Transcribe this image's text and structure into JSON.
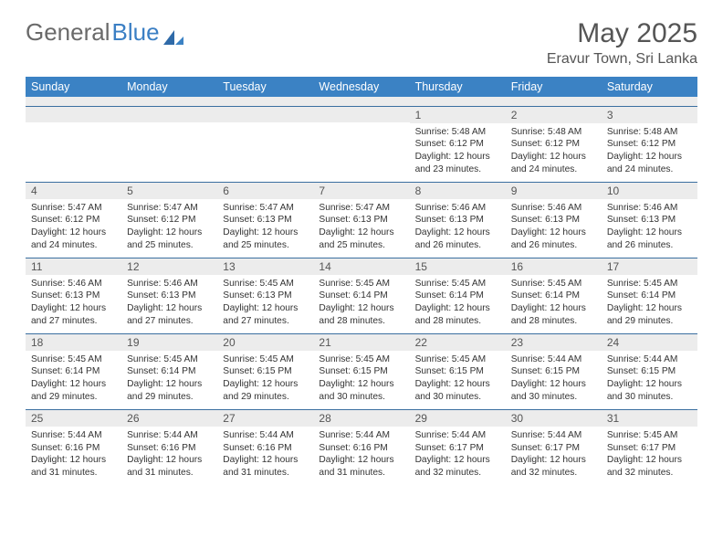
{
  "logo": {
    "part1": "General",
    "part2": "Blue"
  },
  "title": "May 2025",
  "location": "Eravur Town, Sri Lanka",
  "day_headers": [
    "Sunday",
    "Monday",
    "Tuesday",
    "Wednesday",
    "Thursday",
    "Friday",
    "Saturday"
  ],
  "colors": {
    "header_bg": "#3b82c4",
    "header_text": "#ffffff",
    "row_border": "#3b6fa0",
    "daynum_bg": "#ececec",
    "text": "#333333",
    "title_text": "#555555"
  },
  "labels": {
    "sunrise": "Sunrise:",
    "sunset": "Sunset:",
    "daylight": "Daylight:"
  },
  "weeks": [
    [
      {
        "n": "",
        "sr": "",
        "ss": "",
        "dl": ""
      },
      {
        "n": "",
        "sr": "",
        "ss": "",
        "dl": ""
      },
      {
        "n": "",
        "sr": "",
        "ss": "",
        "dl": ""
      },
      {
        "n": "",
        "sr": "",
        "ss": "",
        "dl": ""
      },
      {
        "n": "1",
        "sr": "5:48 AM",
        "ss": "6:12 PM",
        "dl": "12 hours and 23 minutes."
      },
      {
        "n": "2",
        "sr": "5:48 AM",
        "ss": "6:12 PM",
        "dl": "12 hours and 24 minutes."
      },
      {
        "n": "3",
        "sr": "5:48 AM",
        "ss": "6:12 PM",
        "dl": "12 hours and 24 minutes."
      }
    ],
    [
      {
        "n": "4",
        "sr": "5:47 AM",
        "ss": "6:12 PM",
        "dl": "12 hours and 24 minutes."
      },
      {
        "n": "5",
        "sr": "5:47 AM",
        "ss": "6:12 PM",
        "dl": "12 hours and 25 minutes."
      },
      {
        "n": "6",
        "sr": "5:47 AM",
        "ss": "6:13 PM",
        "dl": "12 hours and 25 minutes."
      },
      {
        "n": "7",
        "sr": "5:47 AM",
        "ss": "6:13 PM",
        "dl": "12 hours and 25 minutes."
      },
      {
        "n": "8",
        "sr": "5:46 AM",
        "ss": "6:13 PM",
        "dl": "12 hours and 26 minutes."
      },
      {
        "n": "9",
        "sr": "5:46 AM",
        "ss": "6:13 PM",
        "dl": "12 hours and 26 minutes."
      },
      {
        "n": "10",
        "sr": "5:46 AM",
        "ss": "6:13 PM",
        "dl": "12 hours and 26 minutes."
      }
    ],
    [
      {
        "n": "11",
        "sr": "5:46 AM",
        "ss": "6:13 PM",
        "dl": "12 hours and 27 minutes."
      },
      {
        "n": "12",
        "sr": "5:46 AM",
        "ss": "6:13 PM",
        "dl": "12 hours and 27 minutes."
      },
      {
        "n": "13",
        "sr": "5:45 AM",
        "ss": "6:13 PM",
        "dl": "12 hours and 27 minutes."
      },
      {
        "n": "14",
        "sr": "5:45 AM",
        "ss": "6:14 PM",
        "dl": "12 hours and 28 minutes."
      },
      {
        "n": "15",
        "sr": "5:45 AM",
        "ss": "6:14 PM",
        "dl": "12 hours and 28 minutes."
      },
      {
        "n": "16",
        "sr": "5:45 AM",
        "ss": "6:14 PM",
        "dl": "12 hours and 28 minutes."
      },
      {
        "n": "17",
        "sr": "5:45 AM",
        "ss": "6:14 PM",
        "dl": "12 hours and 29 minutes."
      }
    ],
    [
      {
        "n": "18",
        "sr": "5:45 AM",
        "ss": "6:14 PM",
        "dl": "12 hours and 29 minutes."
      },
      {
        "n": "19",
        "sr": "5:45 AM",
        "ss": "6:14 PM",
        "dl": "12 hours and 29 minutes."
      },
      {
        "n": "20",
        "sr": "5:45 AM",
        "ss": "6:15 PM",
        "dl": "12 hours and 29 minutes."
      },
      {
        "n": "21",
        "sr": "5:45 AM",
        "ss": "6:15 PM",
        "dl": "12 hours and 30 minutes."
      },
      {
        "n": "22",
        "sr": "5:45 AM",
        "ss": "6:15 PM",
        "dl": "12 hours and 30 minutes."
      },
      {
        "n": "23",
        "sr": "5:44 AM",
        "ss": "6:15 PM",
        "dl": "12 hours and 30 minutes."
      },
      {
        "n": "24",
        "sr": "5:44 AM",
        "ss": "6:15 PM",
        "dl": "12 hours and 30 minutes."
      }
    ],
    [
      {
        "n": "25",
        "sr": "5:44 AM",
        "ss": "6:16 PM",
        "dl": "12 hours and 31 minutes."
      },
      {
        "n": "26",
        "sr": "5:44 AM",
        "ss": "6:16 PM",
        "dl": "12 hours and 31 minutes."
      },
      {
        "n": "27",
        "sr": "5:44 AM",
        "ss": "6:16 PM",
        "dl": "12 hours and 31 minutes."
      },
      {
        "n": "28",
        "sr": "5:44 AM",
        "ss": "6:16 PM",
        "dl": "12 hours and 31 minutes."
      },
      {
        "n": "29",
        "sr": "5:44 AM",
        "ss": "6:17 PM",
        "dl": "12 hours and 32 minutes."
      },
      {
        "n": "30",
        "sr": "5:44 AM",
        "ss": "6:17 PM",
        "dl": "12 hours and 32 minutes."
      },
      {
        "n": "31",
        "sr": "5:45 AM",
        "ss": "6:17 PM",
        "dl": "12 hours and 32 minutes."
      }
    ]
  ]
}
